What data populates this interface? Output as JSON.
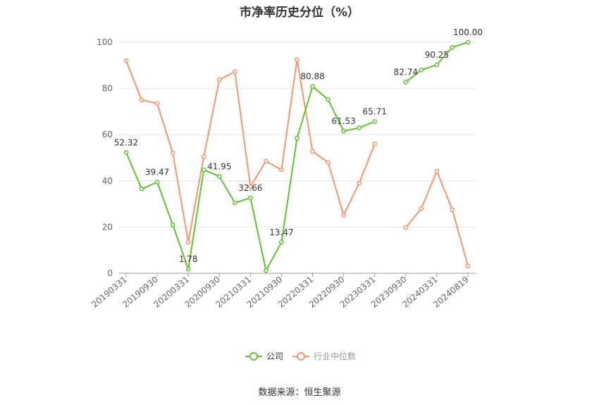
{
  "title": "市净率历史分位（%）",
  "source": "数据来源：恒生聚源",
  "colors": {
    "company": "#5ec42c",
    "industry": "#f5956b",
    "grid": "#e6e6e6",
    "axis": "#999999"
  },
  "chart_data": {
    "type": "line",
    "ylim": [
      0,
      100
    ],
    "yticks": [
      0,
      20,
      40,
      60,
      80,
      100
    ],
    "grid": true,
    "legend_position": "bottom",
    "x_tick_labels": [
      "20190331",
      "20190930",
      "20200331",
      "20200930",
      "20210331",
      "20210930",
      "20220331",
      "20220930",
      "20230331",
      "20230930",
      "20240331",
      "20240819"
    ],
    "x": [
      "20190331",
      "20190630",
      "20190930",
      "20191231",
      "20200331",
      "20200630",
      "20200930",
      "20201231",
      "20210331",
      "20210630",
      "20210930",
      "20211231",
      "20220331",
      "20220630",
      "20220930",
      "20221231",
      "20230331",
      "20230630",
      "20230930",
      "20231231",
      "20240331",
      "20240630",
      "20240819"
    ],
    "series": [
      {
        "name": "公司",
        "values": [
          52.32,
          36.5,
          39.47,
          21.0,
          1.78,
          44.8,
          41.95,
          30.5,
          32.66,
          1.2,
          13.47,
          58.5,
          80.88,
          75.2,
          61.53,
          63.0,
          65.71,
          null,
          82.74,
          88.0,
          90.25,
          97.8,
          100.0
        ],
        "labels": {
          "0": "52.32",
          "2": "39.47",
          "4": "1.78",
          "6": "41.95",
          "8": "32.66",
          "10": "13.47",
          "12": "80.88",
          "14": "61.53",
          "16": "65.71",
          "18": "82.74",
          "20": "90.25",
          "22": "100.00"
        }
      },
      {
        "name": "行业中位数",
        "values": [
          92.0,
          75.0,
          73.5,
          52.0,
          13.5,
          50.5,
          83.8,
          87.2,
          37.5,
          48.5,
          44.8,
          92.5,
          52.8,
          48.0,
          25.2,
          39.0,
          56.0,
          null,
          19.8,
          28.0,
          44.2,
          27.5,
          3.2
        ],
        "labels": {}
      }
    ]
  }
}
